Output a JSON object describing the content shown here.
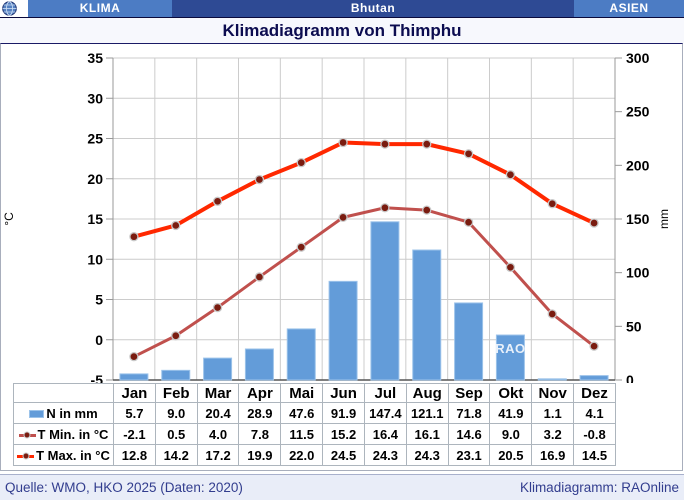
{
  "header": {
    "left": "KLIMA",
    "center": "Bhutan",
    "right": "ASIEN"
  },
  "title": "Klimadiagramm von Thimphu",
  "footer": {
    "left": "Quelle: WMO, HKO 2025 (Daten: 2020)",
    "right": "Klimadiagramm: RAOnline"
  },
  "watermark": "RAO",
  "colors": {
    "bar": "#639CD9",
    "bar_border": "#9CC3EA",
    "tmin_line": "#C0504D",
    "tmax_line": "#FF2800",
    "marker": "#7A1C10",
    "grid": "#CCCCCC",
    "axis": "#999999",
    "axis_bottom": "#555555"
  },
  "chart_data": {
    "type": "bar",
    "subtype": "climate diagram: precipitation bars + min/max temperature lines",
    "title": "Klimadiagramm von Thimphu",
    "categories": [
      "Jan",
      "Feb",
      "Mar",
      "Apr",
      "Mai",
      "Jun",
      "Jul",
      "Aug",
      "Sep",
      "Okt",
      "Nov",
      "Dez"
    ],
    "series": [
      {
        "name": "N in mm",
        "type": "bar",
        "axis": "right",
        "swatch": "bar",
        "color": "#639CD9",
        "values": [
          "5.7",
          "9.0",
          "20.4",
          "28.9",
          "47.6",
          "91.9",
          "147.4",
          "121.1",
          "71.8",
          "41.9",
          "1.1",
          "4.1"
        ]
      },
      {
        "name": "T Min. in °C",
        "type": "line",
        "axis": "left",
        "swatch": "line-dot",
        "color": "#C0504D",
        "width": 3,
        "values": [
          "-2.1",
          "0.5",
          "4.0",
          "7.8",
          "11.5",
          "15.2",
          "16.4",
          "16.1",
          "14.6",
          "9.0",
          "3.2",
          "-0.8"
        ]
      },
      {
        "name": "T Max. in °C",
        "type": "line",
        "axis": "left",
        "swatch": "line-dot",
        "color": "#FF2800",
        "width": 4,
        "values": [
          "12.8",
          "14.2",
          "17.2",
          "19.9",
          "22.0",
          "24.5",
          "24.3",
          "24.3",
          "23.1",
          "20.5",
          "16.9",
          "14.5"
        ]
      }
    ],
    "left_axis": {
      "label": "°C",
      "min": -5,
      "max": 35,
      "ticks": [
        35,
        30,
        25,
        20,
        15,
        10,
        5,
        0,
        -5
      ]
    },
    "right_axis": {
      "label": "mm",
      "min": 0,
      "max": 300,
      "ticks": [
        300,
        250,
        200,
        150,
        100,
        50,
        0
      ]
    },
    "grid": true,
    "legend_position": "table-below"
  }
}
